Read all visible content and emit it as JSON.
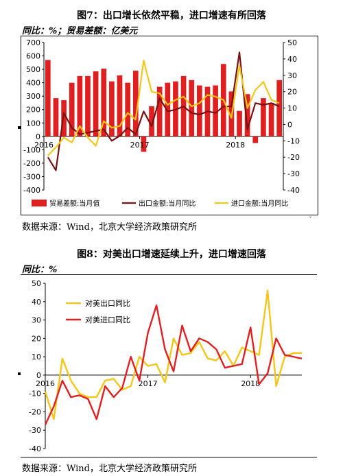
{
  "figure7": {
    "title": "图7：出口增长依然平稳，进口增速有所回落",
    "units": "同比：%；贸易差额：亿美元",
    "source": "数据来源：Wind，北京大学经济政策研究所"
  },
  "figure8": {
    "title": "图8：对美出口增速延续上升，进口增速回落",
    "units": "同比：%",
    "source": "数据来源：Wind，北京大学经济政策研究所"
  },
  "colors": {
    "bar": "#e02020",
    "export": "#7a1010",
    "import": "#f5c518",
    "us_export": "#f5c518",
    "us_import": "#e02020"
  },
  "chart_data": [
    {
      "type": "bar",
      "title": "",
      "x": [
        "2016-01",
        "2016-02",
        "2016-03",
        "2016-04",
        "2016-05",
        "2016-06",
        "2016-07",
        "2016-08",
        "2016-09",
        "2016-10",
        "2016-11",
        "2016-12",
        "2017-01",
        "2017-02",
        "2017-03",
        "2017-04",
        "2017-05",
        "2017-06",
        "2017-07",
        "2017-08",
        "2017-09",
        "2017-10",
        "2017-11",
        "2017-12",
        "2018-01",
        "2018-02",
        "2018-03",
        "2018-04",
        "2018-05",
        "2018-06"
      ],
      "x_ticks": [
        "2016",
        "2017",
        "2018"
      ],
      "ylim_left": [
        -400,
        700
      ],
      "ylim_right": [
        -40,
        50
      ],
      "y_ticks_left": [
        -400,
        -300,
        -200,
        -100,
        0,
        100,
        200,
        300,
        400,
        500,
        600,
        700
      ],
      "y_ticks_right": [
        -40,
        -30,
        -20,
        -10,
        0,
        10,
        20,
        30,
        40,
        50
      ],
      "series": [
        {
          "name": "贸易差额:当月值",
          "kind": "bar",
          "axis": "left",
          "values": [
            570,
            285,
            270,
            400,
            450,
            450,
            485,
            505,
            410,
            455,
            400,
            490,
            -115,
            225,
            370,
            400,
            410,
            450,
            420,
            380,
            370,
            380,
            540,
            335,
            190,
            315,
            -50,
            285,
            250,
            420
          ]
        },
        {
          "name": "出口金额:当月同比",
          "kind": "line",
          "axis": "right",
          "values": [
            -20,
            -28,
            7,
            -2,
            -6,
            -5,
            -4,
            -3,
            -10,
            -7,
            -2,
            -6,
            8,
            -1,
            16,
            8,
            9,
            11,
            7,
            6,
            8,
            7,
            11,
            11,
            44,
            -3,
            13,
            12,
            13,
            11
          ]
        },
        {
          "name": "进口金额:当月同比",
          "kind": "line",
          "axis": "right",
          "values": [
            -19,
            -14,
            -8,
            -11,
            -1,
            -8,
            -13,
            2,
            -2,
            -1,
            7,
            3,
            39,
            20,
            19,
            12,
            15,
            17,
            11,
            13,
            18,
            17,
            15,
            4,
            36,
            10,
            21,
            26,
            15,
            13
          ]
        }
      ]
    },
    {
      "type": "line",
      "title": "",
      "x": [
        "2016-01",
        "2016-02",
        "2016-03",
        "2016-04",
        "2016-05",
        "2016-06",
        "2016-07",
        "2016-08",
        "2016-09",
        "2016-10",
        "2016-11",
        "2016-12",
        "2017-01",
        "2017-02",
        "2017-03",
        "2017-04",
        "2017-05",
        "2017-06",
        "2017-07",
        "2017-08",
        "2017-09",
        "2017-10",
        "2017-11",
        "2017-12",
        "2018-01",
        "2018-02",
        "2018-03",
        "2018-04",
        "2018-05",
        "2018-06",
        "2018-07"
      ],
      "x_ticks": [
        "2016",
        "2017",
        "2018"
      ],
      "ylim": [
        -40,
        50
      ],
      "y_ticks": [
        -40,
        -30,
        -20,
        -10,
        0,
        10,
        20,
        30,
        40,
        50
      ],
      "series": [
        {
          "name": "对美出口同比",
          "values": [
            -9,
            -24,
            9,
            -3,
            -10,
            -12,
            -12,
            -3,
            -2,
            -8,
            -6,
            10,
            5,
            6,
            -4,
            20,
            11,
            12,
            18,
            9,
            8,
            13,
            5,
            15,
            13,
            11,
            46,
            -6,
            10,
            12,
            12
          ]
        },
        {
          "name": "对美进口同比",
          "values": [
            -27,
            -17,
            -3,
            -12,
            -11,
            -13,
            -24,
            -6,
            -12,
            -7,
            10,
            -3,
            23,
            38,
            14,
            2,
            27,
            13,
            20,
            18,
            14,
            4,
            5,
            6,
            26,
            -5,
            1,
            20,
            11,
            10,
            9
          ]
        }
      ]
    }
  ]
}
